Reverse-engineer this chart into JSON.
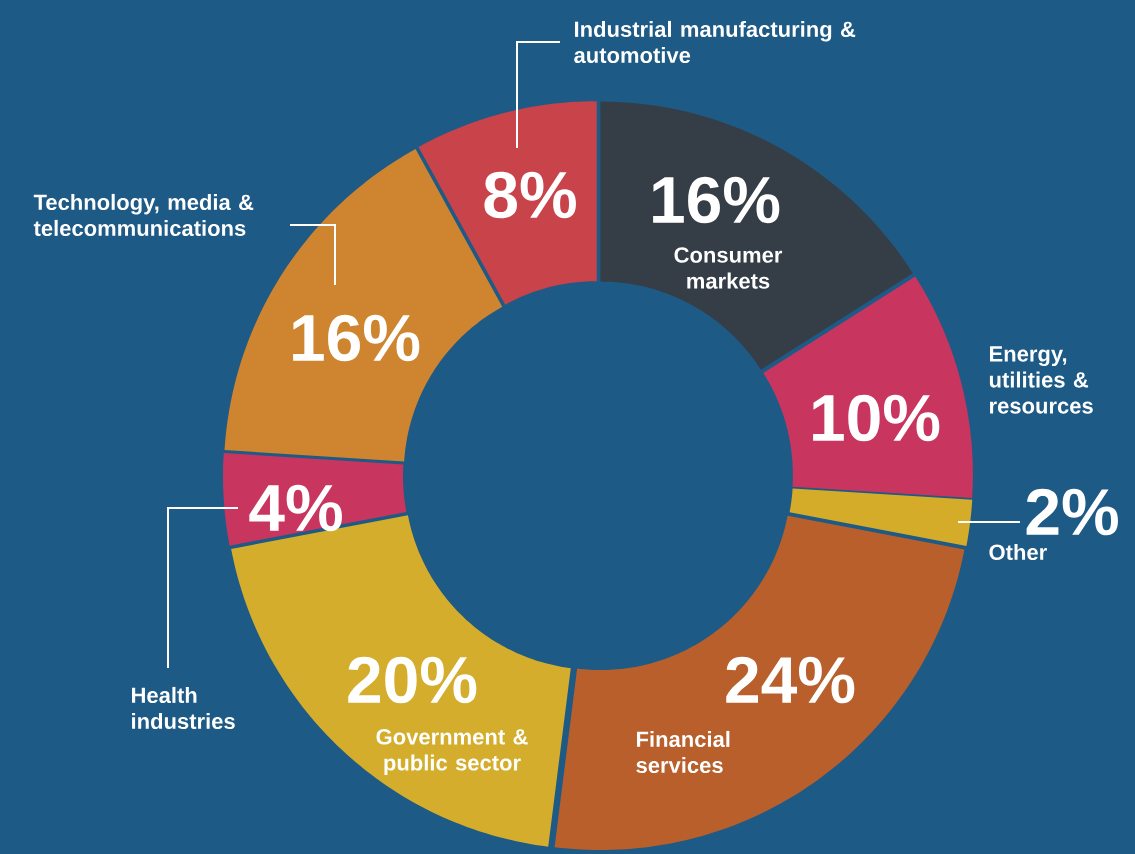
{
  "chart_data": {
    "type": "donut",
    "categories": [
      "Consumer markets",
      "Energy, utilities & resources",
      "Other",
      "Financial services",
      "Government & public sector",
      "Health industries",
      "Technology, media & telecommunications",
      "Industrial manufacturing & automotive"
    ],
    "values": [
      16,
      10,
      2,
      24,
      20,
      4,
      16,
      8
    ],
    "value_labels": [
      "16%",
      "10%",
      "2%",
      "24%",
      "20%",
      "4%",
      "16%",
      "8%"
    ],
    "colors": [
      "#353e47",
      "#c8365f",
      "#d4ac2a",
      "#b85f2c",
      "#d3ad2b",
      "#c8365f",
      "#cf8430",
      "#c8434a"
    ]
  }
}
